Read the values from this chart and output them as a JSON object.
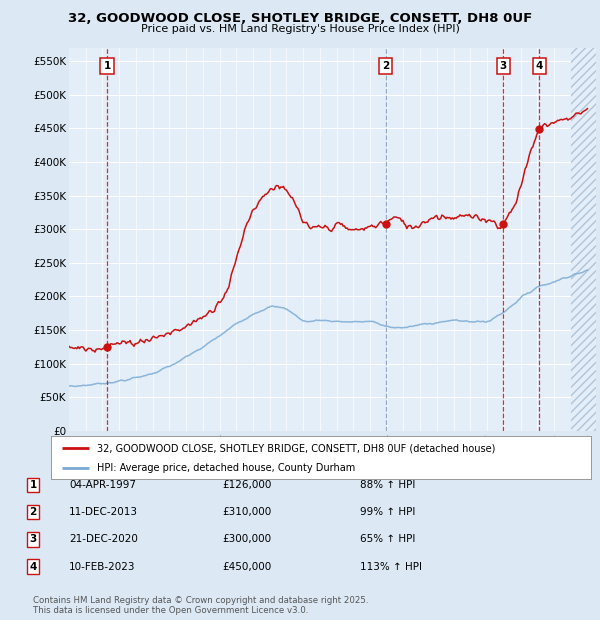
{
  "title_line1": "32, GOODWOOD CLOSE, SHOTLEY BRIDGE, CONSETT, DH8 0UF",
  "title_line2": "Price paid vs. HM Land Registry's House Price Index (HPI)",
  "ylabel_ticks": [
    "£0",
    "£50K",
    "£100K",
    "£150K",
    "£200K",
    "£250K",
    "£300K",
    "£350K",
    "£400K",
    "£450K",
    "£500K",
    "£550K"
  ],
  "ytick_values": [
    0,
    50000,
    100000,
    150000,
    200000,
    250000,
    300000,
    350000,
    400000,
    450000,
    500000,
    550000
  ],
  "ylim": [
    0,
    570000
  ],
  "xlim_start": 1995.0,
  "xlim_end": 2026.5,
  "bg_color": "#dce9f5",
  "plot_bg": "#e4eef8",
  "grid_color": "#ffffff",
  "hpi_line_color": "#7aaad4",
  "sale_line_color": "#cc1111",
  "vline_color_red": "#cc1111",
  "vline_color_blue": "#8899bb",
  "transactions": [
    {
      "num": 1,
      "date_dec": 1997.27,
      "price": 126000,
      "label": "04-APR-1997",
      "amount": "£126,000",
      "pct": "88% ↑ HPI",
      "vline": "red"
    },
    {
      "num": 2,
      "date_dec": 2013.94,
      "price": 310000,
      "label": "11-DEC-2013",
      "amount": "£310,000",
      "pct": "99% ↑ HPI",
      "vline": "blue"
    },
    {
      "num": 3,
      "date_dec": 2020.97,
      "price": 300000,
      "label": "21-DEC-2020",
      "amount": "£300,000",
      "pct": "65% ↑ HPI",
      "vline": "red"
    },
    {
      "num": 4,
      "date_dec": 2023.12,
      "price": 450000,
      "label": "10-FEB-2023",
      "amount": "£450,000",
      "pct": "113% ↑ HPI",
      "vline": "red"
    }
  ],
  "legend_line1": "32, GOODWOOD CLOSE, SHOTLEY BRIDGE, CONSETT, DH8 0UF (detached house)",
  "legend_line2": "HPI: Average price, detached house, County Durham",
  "footer": "Contains HM Land Registry data © Crown copyright and database right 2025.\nThis data is licensed under the Open Government Licence v3.0.",
  "hpi_knots_x": [
    1995,
    1996,
    1997,
    1998,
    1999,
    2000,
    2001,
    2002,
    2003,
    2004,
    2005,
    2006,
    2007,
    2008,
    2009,
    2010,
    2011,
    2012,
    2013,
    2014,
    2015,
    2016,
    2017,
    2018,
    2019,
    2020,
    2021,
    2022,
    2023,
    2024,
    2025,
    2026
  ],
  "hpi_knots_y": [
    66000,
    68000,
    71000,
    74000,
    79000,
    86000,
    96000,
    110000,
    125000,
    142000,
    160000,
    175000,
    185000,
    182000,
    162000,
    165000,
    163000,
    162000,
    163000,
    155000,
    153000,
    158000,
    162000,
    164000,
    163000,
    162000,
    178000,
    198000,
    215000,
    222000,
    232000,
    238000
  ],
  "sale_knots_x": [
    1995.0,
    1996.0,
    1997.0,
    1997.27,
    1997.5,
    1998.0,
    1999.0,
    2000.0,
    2001.0,
    2002.0,
    2003.5,
    2004.5,
    2005.0,
    2005.5,
    2006.0,
    2006.5,
    2007.0,
    2007.5,
    2008.0,
    2008.5,
    2009.0,
    2009.5,
    2010.0,
    2010.5,
    2011.0,
    2011.5,
    2012.0,
    2012.5,
    2013.0,
    2013.5,
    2013.94,
    2014.0,
    2014.5,
    2015.0,
    2015.5,
    2016.0,
    2016.5,
    2017.0,
    2017.5,
    2018.0,
    2018.5,
    2019.0,
    2019.5,
    2020.0,
    2020.5,
    2020.97,
    2021.0,
    2021.5,
    2022.0,
    2022.5,
    2023.0,
    2023.12,
    2023.5,
    2024.0,
    2024.5,
    2025.0,
    2025.5,
    2026.0
  ],
  "sale_knots_y": [
    125000,
    122000,
    125000,
    126000,
    128000,
    130000,
    132000,
    138000,
    145000,
    155000,
    178000,
    210000,
    255000,
    300000,
    330000,
    345000,
    360000,
    365000,
    355000,
    340000,
    310000,
    298000,
    305000,
    300000,
    308000,
    302000,
    298000,
    300000,
    303000,
    308000,
    310000,
    310000,
    318000,
    310000,
    302000,
    308000,
    315000,
    320000,
    318000,
    318000,
    320000,
    318000,
    315000,
    316000,
    310000,
    300000,
    310000,
    330000,
    360000,
    410000,
    440000,
    450000,
    455000,
    460000,
    462000,
    468000,
    472000,
    478000
  ]
}
